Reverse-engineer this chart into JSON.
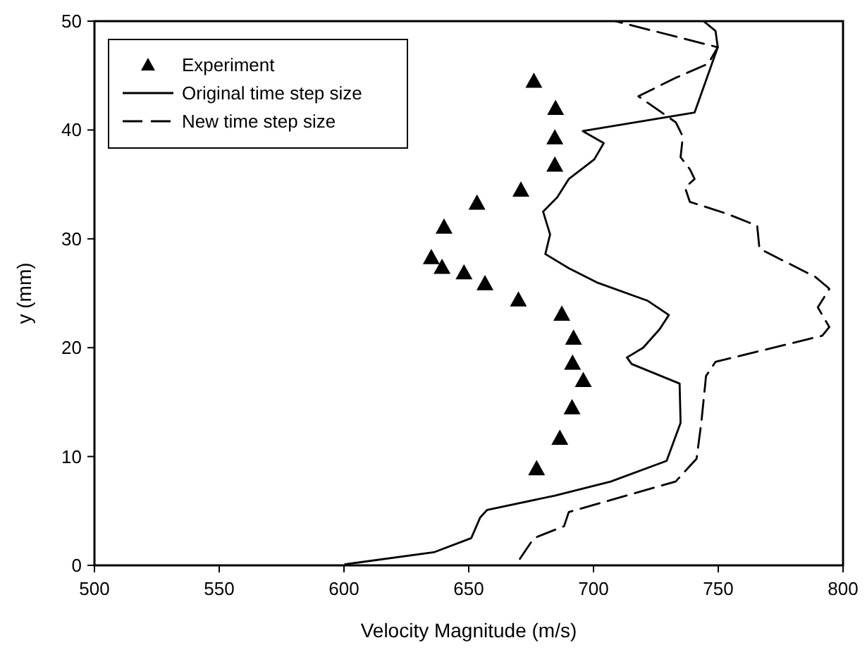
{
  "chart_data": {
    "type": "line",
    "xlabel": "Velocity Magnitude (m/s)",
    "ylabel": "y (mm)",
    "xlim": [
      500,
      800
    ],
    "ylim": [
      0,
      50
    ],
    "xticks": [
      500,
      550,
      600,
      650,
      700,
      750,
      800
    ],
    "yticks": [
      0,
      10,
      20,
      30,
      40,
      50
    ],
    "grid": false,
    "legend": "top left",
    "series": [
      {
        "name": "Experiment",
        "type": "scatter",
        "marker": "triangle",
        "color": "#000000",
        "x": [
          676.1,
          684.8,
          684.5,
          684.5,
          670.9,
          653.3,
          640.1,
          635.0,
          639.3,
          648.1,
          656.5,
          669.9,
          687.3,
          692.0,
          691.6,
          695.9,
          691.4,
          686.5,
          677.2
        ],
        "values": [
          44.5,
          42.0,
          39.3,
          36.8,
          34.5,
          33.3,
          31.1,
          28.3,
          27.4,
          26.9,
          25.9,
          24.4,
          23.1,
          20.9,
          18.6,
          17.0,
          14.5,
          11.7,
          8.9
        ]
      },
      {
        "name": "Original time step size",
        "type": "line",
        "line_style": "solid",
        "color": "#000000",
        "x": [
          600.5,
          636,
          651,
          654.6,
          657.4,
          684.5,
          706.9,
          729.3,
          734.9,
          734.5,
          715.3,
          713.4,
          719.9,
          726.5,
          730.2,
          721.8,
          701.3,
          690.1,
          680.7,
          682.6,
          679.8,
          685.4,
          690.1,
          700.3,
          704.1,
          695.7,
          740.5,
          749.8,
          748.9,
          744.1
        ],
        "values": [
          0.1,
          1.2,
          2.5,
          4.4,
          5.1,
          6.4,
          7.7,
          9.6,
          13.1,
          16.7,
          18.5,
          19.1,
          20.0,
          21.7,
          23.0,
          24.3,
          26.0,
          27.3,
          28.6,
          30.4,
          32.5,
          33.8,
          35.5,
          37.3,
          38.8,
          39.9,
          41.6,
          47.6,
          49.1,
          50
        ]
      },
      {
        "name": "New time step size",
        "type": "line",
        "line_style": "dashed",
        "color": "#000000",
        "x": [
          670.5,
          676.1,
          688.2,
          690.1,
          732.9,
          741.3,
          743.2,
          745.1,
          748.9,
          791.7,
          794.5,
          789.9,
          794.5,
          793.6,
          788.9,
          766.5,
          765.6,
          753.5,
          738.6,
          736.7,
          740.5,
          738.6,
          734.9,
          735.8,
          733,
          718,
          733,
          746,
          749.8,
          708.7
        ],
        "values": [
          0.6,
          2.5,
          3.6,
          4.9,
          7.7,
          9.8,
          13.1,
          17.4,
          18.7,
          21.1,
          21.9,
          23.7,
          25.4,
          25.6,
          26.5,
          29.1,
          31.2,
          32.3,
          33.4,
          34.7,
          35.5,
          36.4,
          37.5,
          39.4,
          40.7,
          43.1,
          44.8,
          46.1,
          47.6,
          50
        ]
      }
    ]
  }
}
